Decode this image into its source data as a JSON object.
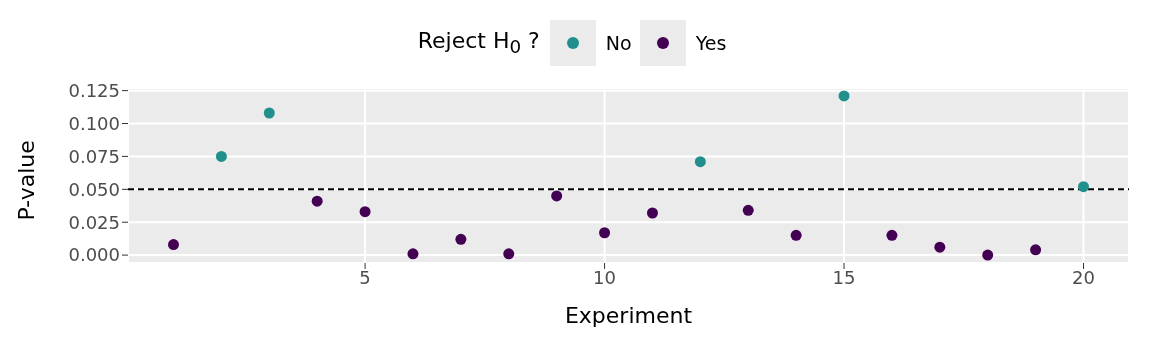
{
  "chart_data": {
    "type": "scatter",
    "xlabel": "Experiment",
    "ylabel": "P-value",
    "legend_title": "Reject H$_{0}$ ?",
    "legend": "top",
    "marker": "circle",
    "grid": true,
    "xlim": [
      0.05,
      20.95
    ],
    "xticks": [
      5,
      10,
      15,
      20
    ],
    "ylim": [
      -0.006,
      0.127
    ],
    "yticks": [
      {
        "value": 0,
        "label": "0.000"
      },
      {
        "value": 0.025,
        "label": "0.025"
      },
      {
        "value": 0.05,
        "label": "0.050"
      },
      {
        "value": 0.075,
        "label": "0.075"
      },
      {
        "value": 0.1,
        "label": "0.100"
      },
      {
        "value": 0.125,
        "label": "0.125"
      }
    ],
    "series": [
      {
        "name": "No",
        "color": "#21908c",
        "x": [
          2,
          3,
          12,
          15,
          20
        ],
        "values": [
          0.075,
          0.108,
          0.071,
          0.121,
          0.052
        ]
      },
      {
        "name": "Yes",
        "color": "#440154",
        "x": [
          1,
          4,
          5,
          6,
          7,
          8,
          9,
          10,
          11,
          13,
          14,
          16,
          17,
          18,
          19
        ],
        "values": [
          0.008,
          0.041,
          0.033,
          0.001,
          0.012,
          0.001,
          0.045,
          0.017,
          0.032,
          0.034,
          0.015,
          0.015,
          0.006,
          0.0,
          0.004
        ]
      }
    ],
    "ref_lines": [
      {
        "axis": "y",
        "value": 0.05,
        "color": "#000000",
        "line_style": "dashed"
      }
    ]
  }
}
